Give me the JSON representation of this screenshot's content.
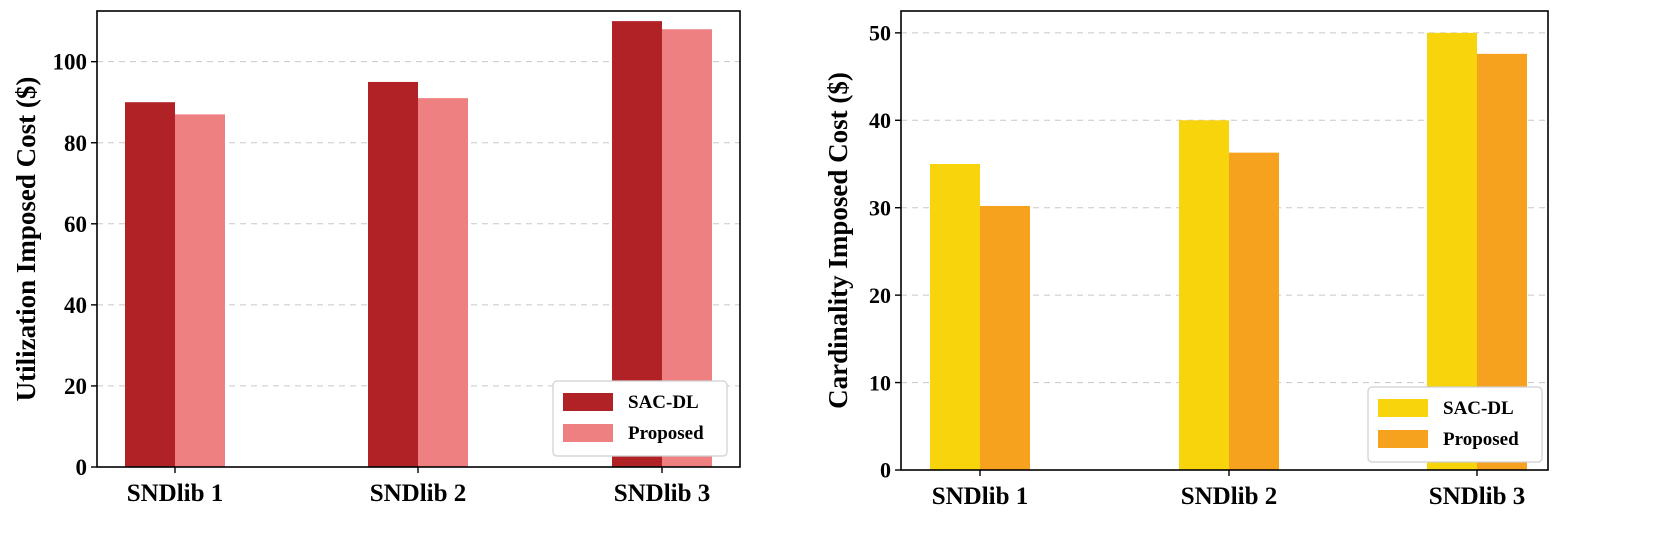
{
  "chart_data": [
    {
      "type": "bar",
      "categories": [
        "SNDlib 1",
        "SNDlib 2",
        "SNDlib 3"
      ],
      "series": [
        {
          "name": "SAC-DL",
          "values": [
            90,
            95,
            110
          ],
          "color": "#b02226"
        },
        {
          "name": "Proposed",
          "values": [
            87,
            91,
            108
          ],
          "color": "#ee8082"
        }
      ],
      "ylabel": "Utilization Imposed Cost ($)",
      "ylim": [
        0,
        112.5
      ],
      "yticks": [
        0,
        20,
        40,
        60,
        80,
        100
      ],
      "grid": "y-dashed",
      "legend_position": "bottom-right"
    },
    {
      "type": "bar",
      "categories": [
        "SNDlib 1",
        "SNDlib 2",
        "SNDlib 3"
      ],
      "series": [
        {
          "name": "SAC-DL",
          "values": [
            35,
            40,
            50
          ],
          "color": "#f8d40c"
        },
        {
          "name": "Proposed",
          "values": [
            30.2,
            36.3,
            47.6
          ],
          "color": "#f6a21e"
        }
      ],
      "ylabel": "Cardinality Imposed Cost ($)",
      "ylim": [
        0,
        52.5
      ],
      "yticks": [
        0,
        10,
        20,
        30,
        40,
        50
      ],
      "grid": "y-dashed",
      "legend_position": "bottom-right"
    }
  ]
}
